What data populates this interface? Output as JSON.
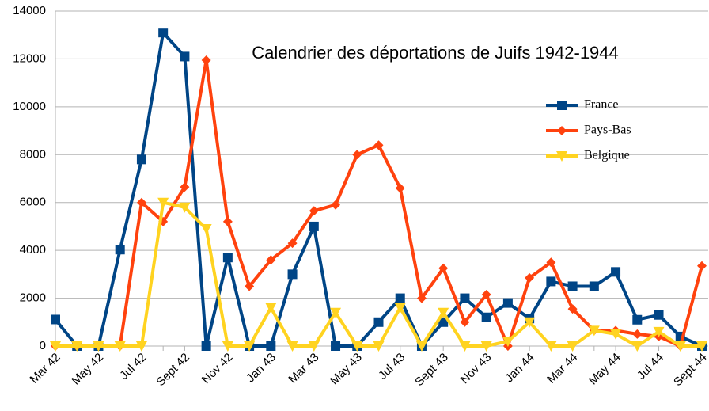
{
  "chart_data": {
    "type": "line",
    "title": "Calendrier des déportations de Juifs  1942-1944",
    "categories": [
      "Mar 42",
      null,
      "May 42",
      null,
      "Jul 42",
      null,
      "Sept 42",
      null,
      "Nov 42",
      null,
      "Jan 43",
      null,
      "Mar 43",
      null,
      "May 43",
      null,
      "Jul 43",
      null,
      "Sept 43",
      null,
      "Nov 43",
      null,
      "Jan 44",
      null,
      "Mar 44",
      null,
      "May 44",
      null,
      "Jul 44",
      null,
      "Sept 44"
    ],
    "series": [
      {
        "name": "France",
        "color": "#004586",
        "marker": "square",
        "values": [
          1110,
          0,
          0,
          4030,
          7800,
          13100,
          12100,
          0,
          3700,
          0,
          0,
          3000,
          5000,
          0,
          0,
          1000,
          2000,
          0,
          1000,
          2000,
          1200,
          1800,
          1150,
          2700,
          2500,
          2500,
          3100,
          1100,
          1300,
          400,
          0
        ]
      },
      {
        "name": "Pays-Bas",
        "color": "#ff420e",
        "marker": "diamond",
        "values": [
          0,
          0,
          0,
          0,
          6000,
          5200,
          6650,
          11950,
          5200,
          2500,
          3600,
          4300,
          5650,
          5900,
          8000,
          8400,
          6600,
          2000,
          3250,
          1000,
          2150,
          0,
          2850,
          3500,
          1550,
          650,
          650,
          500,
          400,
          0,
          3350
        ]
      },
      {
        "name": "Belgique",
        "color": "#ffd320",
        "marker": "triangle-down",
        "values": [
          0,
          0,
          0,
          0,
          0,
          6000,
          5800,
          4900,
          0,
          0,
          1600,
          0,
          0,
          1400,
          0,
          0,
          1600,
          0,
          1400,
          0,
          0,
          200,
          1000,
          0,
          0,
          650,
          500,
          0,
          600,
          0,
          0
        ]
      }
    ],
    "ylim": [
      0,
      14000
    ],
    "yticks": [
      0,
      2000,
      4000,
      6000,
      8000,
      10000,
      12000,
      14000
    ],
    "grid": true
  }
}
